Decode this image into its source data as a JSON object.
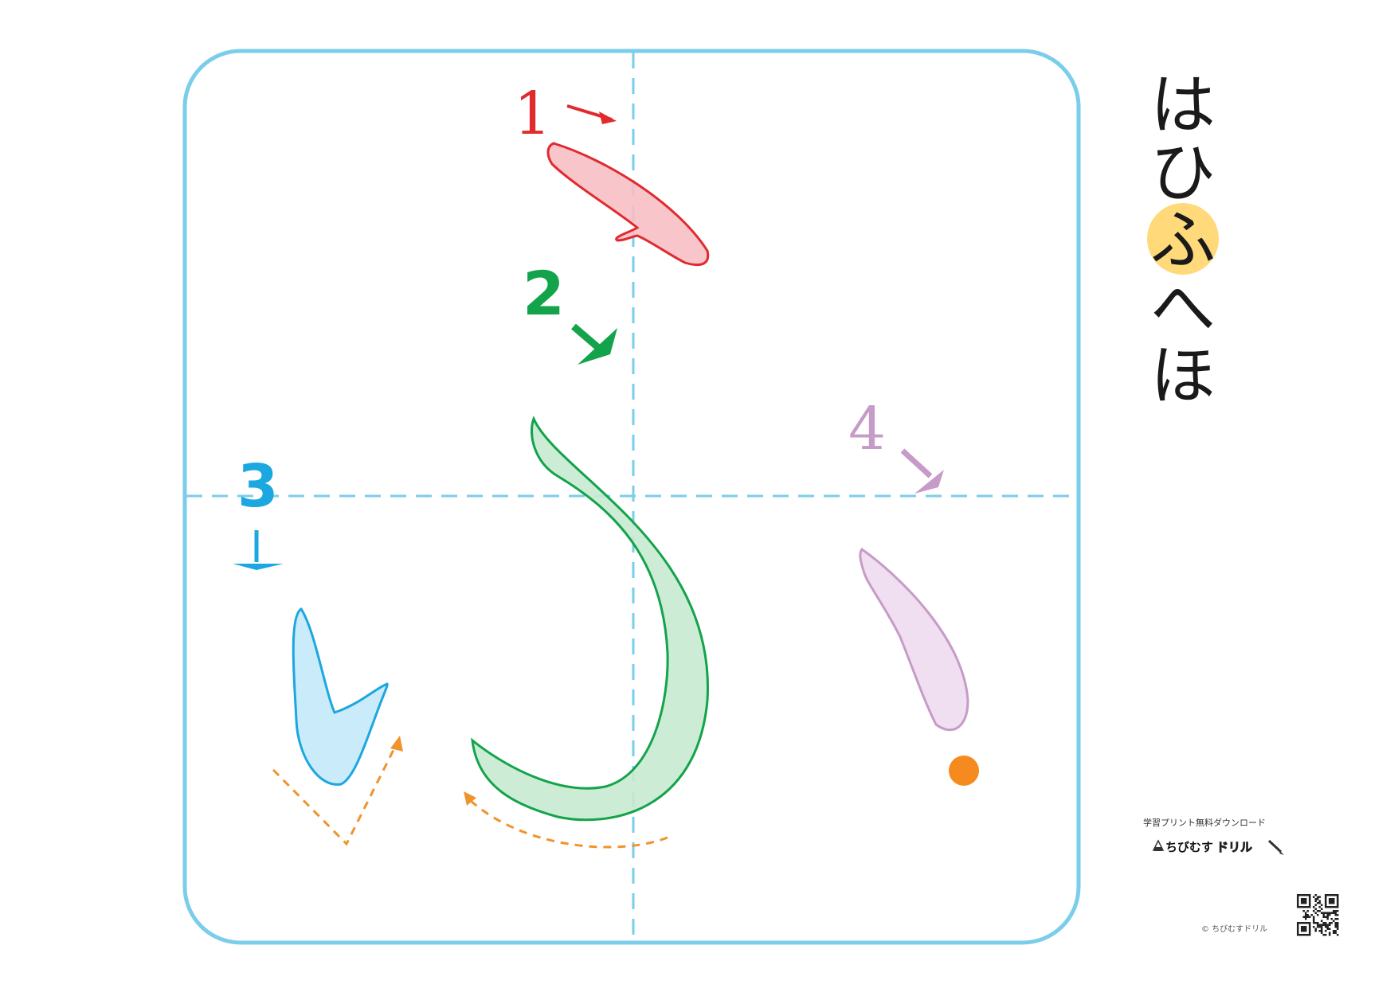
{
  "row": {
    "chars": [
      "は",
      "ひ",
      "ふ",
      "へ",
      "ほ"
    ],
    "highlight_index": 2,
    "highlight_color": "#FFD97A"
  },
  "strokes": [
    {
      "number": "1",
      "color": "#E02A2E",
      "fill": "#F6BFC4"
    },
    {
      "number": "2",
      "color": "#13A34A",
      "fill": "#C6EAD2"
    },
    {
      "number": "3",
      "color": "#1BA7DF",
      "fill": "#C4E9F8"
    },
    {
      "number": "4",
      "color": "#C79BC8",
      "fill": "#EEDCEE"
    }
  ],
  "colors": {
    "frame": "#7ACDEB",
    "guide": "#7ACDEB",
    "transition": "#F0932B",
    "end_dot": "#F58A1F"
  },
  "brand": {
    "tagline": "学習プリント無料ダウンロード",
    "name_main": "ちびむす",
    "name_accent": "ドリル",
    "copyright": "© ちびむすドリル",
    "mascot_icon": "onigiri-mascot-icon",
    "pencil_icon": "pencil-icon",
    "qr_icon": "qr-code-icon"
  }
}
